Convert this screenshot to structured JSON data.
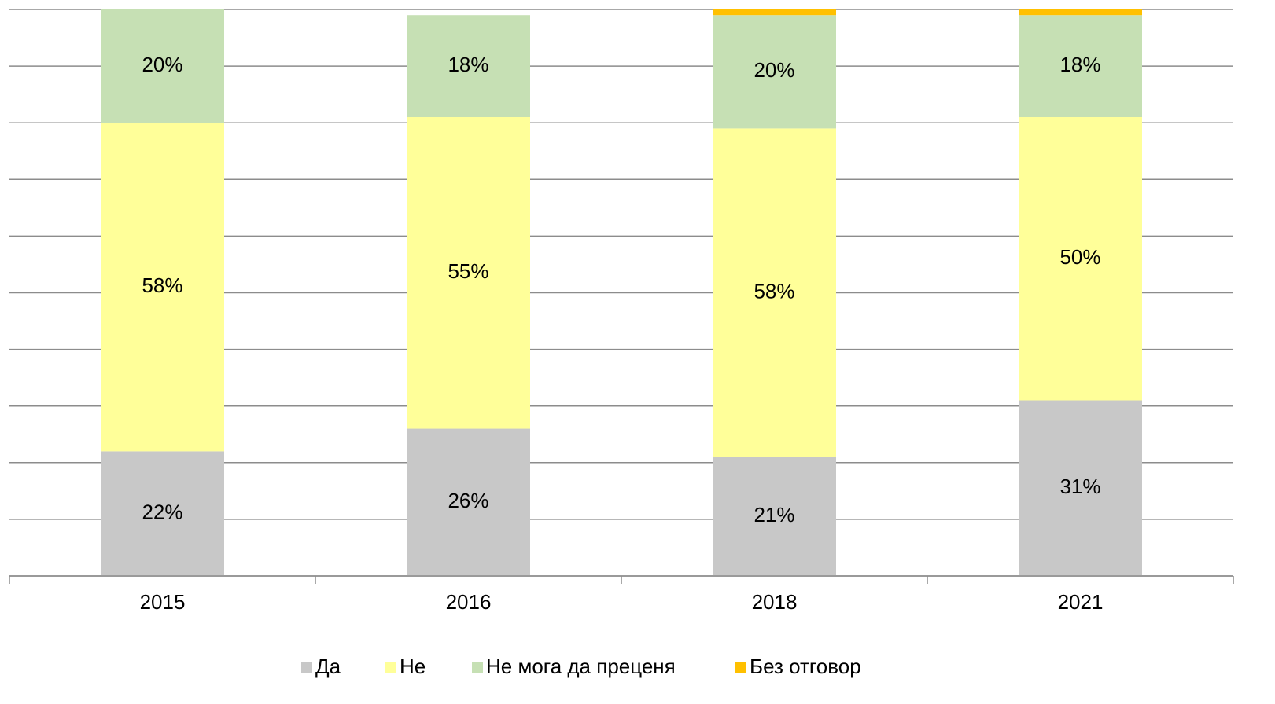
{
  "chart_data": {
    "type": "stacked_bar",
    "categories": [
      "2015",
      "2016",
      "2018",
      "2021"
    ],
    "series": [
      {
        "name": "Да",
        "color": "#c8c8c8",
        "values": [
          22,
          26,
          21,
          31
        ],
        "value_labels": [
          "22%",
          "26%",
          "21%",
          "31%"
        ]
      },
      {
        "name": "Не",
        "color": "#ffff99",
        "values": [
          58,
          55,
          58,
          50
        ],
        "value_labels": [
          "58%",
          "55%",
          "58%",
          "50%"
        ]
      },
      {
        "name": "Не мога да преценя",
        "color": "#c6e0b4",
        "values": [
          20,
          18,
          20,
          18
        ],
        "value_labels": [
          "20%",
          "18%",
          "20%",
          "18%"
        ]
      },
      {
        "name": "Без отговор",
        "color": "#ffc000",
        "values": [
          0,
          0,
          1,
          1
        ],
        "value_labels": [
          null,
          null,
          null,
          null
        ]
      }
    ],
    "ylim": [
      0,
      100
    ],
    "yticks": [
      0,
      10,
      20,
      30,
      40,
      50,
      60,
      70,
      80,
      90,
      100
    ],
    "grid": true,
    "legend": "bottom"
  }
}
